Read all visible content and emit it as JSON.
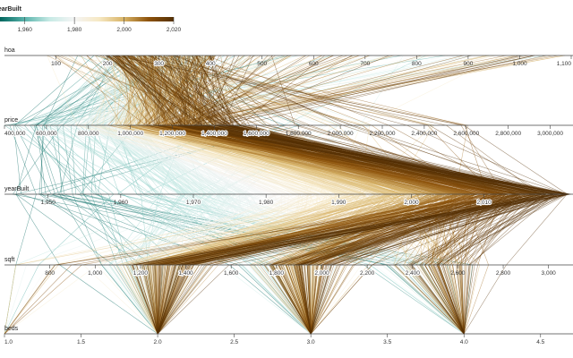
{
  "chart_data": {
    "type": "parallel-coordinates",
    "title": "",
    "color_by": "yearBuilt",
    "legend": {
      "title": "yearBuilt",
      "placement": "top-left",
      "domain": [
        1950,
        2020
      ],
      "ticks": [
        1960,
        1980,
        2000,
        2020
      ],
      "tick_labels": [
        "1,960",
        "1,980",
        "2,000",
        "2,020"
      ],
      "colors": [
        "#01665e",
        "#5ab4ac",
        "#c7eae5",
        "#f5f5f5",
        "#f6e8c3",
        "#d8b365",
        "#8c510a",
        "#543005"
      ]
    },
    "axes": [
      {
        "name": "hoa",
        "domain": [
          0,
          1100
        ],
        "ticks": [
          100,
          200,
          300,
          400,
          500,
          600,
          700,
          800,
          900,
          1000,
          1100
        ],
        "tick_labels": [
          "100",
          "200",
          "300",
          "400",
          "500",
          "600",
          "700",
          "800",
          "900",
          "1,000",
          "1,100"
        ],
        "highlight_ticks": [
          200,
          300,
          400
        ]
      },
      {
        "name": "price",
        "domain": [
          400000,
          3100000
        ],
        "ticks": [
          400000,
          600000,
          800000,
          1000000,
          1200000,
          1400000,
          1600000,
          1800000,
          2000000,
          2200000,
          2400000,
          2600000,
          2800000,
          3000000
        ],
        "tick_labels": [
          "400,000",
          "600,000",
          "800,000",
          "1,000,000",
          "1,200,000",
          "1,400,000",
          "1,600,000",
          "1,800,000",
          "2,000,000",
          "2,200,000",
          "2,400,000",
          "2,600,000",
          "2,800,000",
          "3,000,000"
        ],
        "highlight_ticks": [
          400000,
          600000,
          800000,
          1000000,
          1200000,
          1400000,
          1600000
        ]
      },
      {
        "name": "yearBuilt",
        "domain": [
          1944,
          2022
        ],
        "ticks": [
          1950,
          1960,
          1970,
          1980,
          1990,
          2000,
          2010
        ],
        "tick_labels": [
          "1,950",
          "1,960",
          "1,970",
          "1,980",
          "1,990",
          "2,000",
          "2,010"
        ],
        "highlight_ticks": [
          1970,
          1980,
          1990,
          2000,
          2010
        ]
      },
      {
        "name": "sqft",
        "domain": [
          600,
          3100
        ],
        "ticks": [
          800,
          1000,
          1200,
          1400,
          1600,
          1800,
          2000,
          2200,
          2400,
          2600,
          2800,
          3000
        ],
        "tick_labels": [
          "800",
          "1,000",
          "1,200",
          "1,400",
          "1,600",
          "1,800",
          "2,000",
          "2,200",
          "2,400",
          "2,600",
          "2,800",
          "3,000"
        ],
        "highlight_ticks": [
          1000,
          1200,
          1400,
          1600,
          1800,
          2000,
          2200,
          2400
        ]
      },
      {
        "name": "beds",
        "domain": [
          1.0,
          4.7
        ],
        "ticks": [
          1.0,
          1.5,
          2.0,
          2.5,
          3.0,
          3.5,
          4.0,
          4.5
        ],
        "tick_labels": [
          "1.0",
          "1.5",
          "2.0",
          "2.5",
          "3.0",
          "3.5",
          "4.0",
          "4.5"
        ],
        "highlight_ticks": []
      }
    ]
  }
}
